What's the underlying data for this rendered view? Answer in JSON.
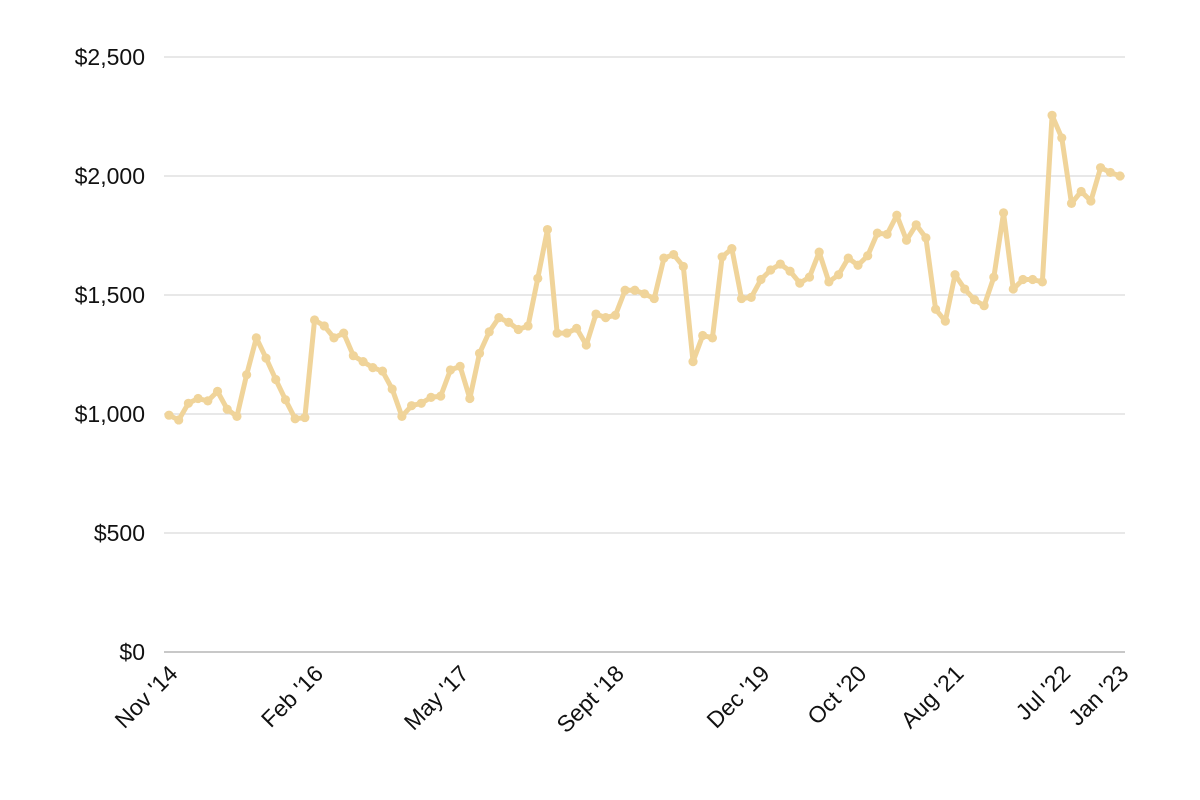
{
  "chart_data": {
    "type": "line",
    "title": "",
    "xlabel": "",
    "ylabel": "",
    "ylim": [
      0,
      2500
    ],
    "grid": true,
    "colors": {
      "series": "#F0D49A",
      "grid": "#d9d9d9",
      "axis": "#b5b5b5",
      "text": "#111111"
    },
    "y_ticks": [
      {
        "value": 0,
        "label": "$0"
      },
      {
        "value": 500,
        "label": "$500"
      },
      {
        "value": 1000,
        "label": "$1,000"
      },
      {
        "value": 1500,
        "label": "$1,500"
      },
      {
        "value": 2000,
        "label": "$2,000"
      },
      {
        "value": 2500,
        "label": "$2,500"
      }
    ],
    "x_ticks": [
      {
        "index": 0,
        "label": "Nov '14"
      },
      {
        "index": 15,
        "label": "Feb '16"
      },
      {
        "index": 30,
        "label": "May '17"
      },
      {
        "index": 46,
        "label": "Sept '18"
      },
      {
        "index": 61,
        "label": "Dec '19"
      },
      {
        "index": 71,
        "label": "Oct '20"
      },
      {
        "index": 81,
        "label": "Aug '21"
      },
      {
        "index": 92,
        "label": "Jul '22"
      },
      {
        "index": 98,
        "label": "Jan '23"
      }
    ],
    "series": [
      {
        "values": [
          995,
          975,
          1045,
          1065,
          1055,
          1095,
          1020,
          990,
          1165,
          1320,
          1235,
          1145,
          1060,
          980,
          985,
          1395,
          1370,
          1320,
          1340,
          1245,
          1220,
          1195,
          1180,
          1105,
          990,
          1035,
          1045,
          1070,
          1075,
          1185,
          1200,
          1065,
          1255,
          1345,
          1405,
          1385,
          1355,
          1370,
          1570,
          1775,
          1340,
          1340,
          1360,
          1290,
          1420,
          1405,
          1415,
          1520,
          1520,
          1505,
          1485,
          1655,
          1670,
          1620,
          1220,
          1330,
          1320,
          1660,
          1695,
          1485,
          1490,
          1565,
          1605,
          1630,
          1600,
          1550,
          1575,
          1680,
          1555,
          1585,
          1655,
          1625,
          1665,
          1760,
          1755,
          1835,
          1730,
          1795,
          1740,
          1440,
          1390,
          1585,
          1525,
          1480,
          1455,
          1575,
          1845,
          1525,
          1565,
          1565,
          1555,
          2255,
          2160,
          1885,
          1935,
          1895,
          2035,
          2015,
          2000
        ]
      }
    ]
  }
}
